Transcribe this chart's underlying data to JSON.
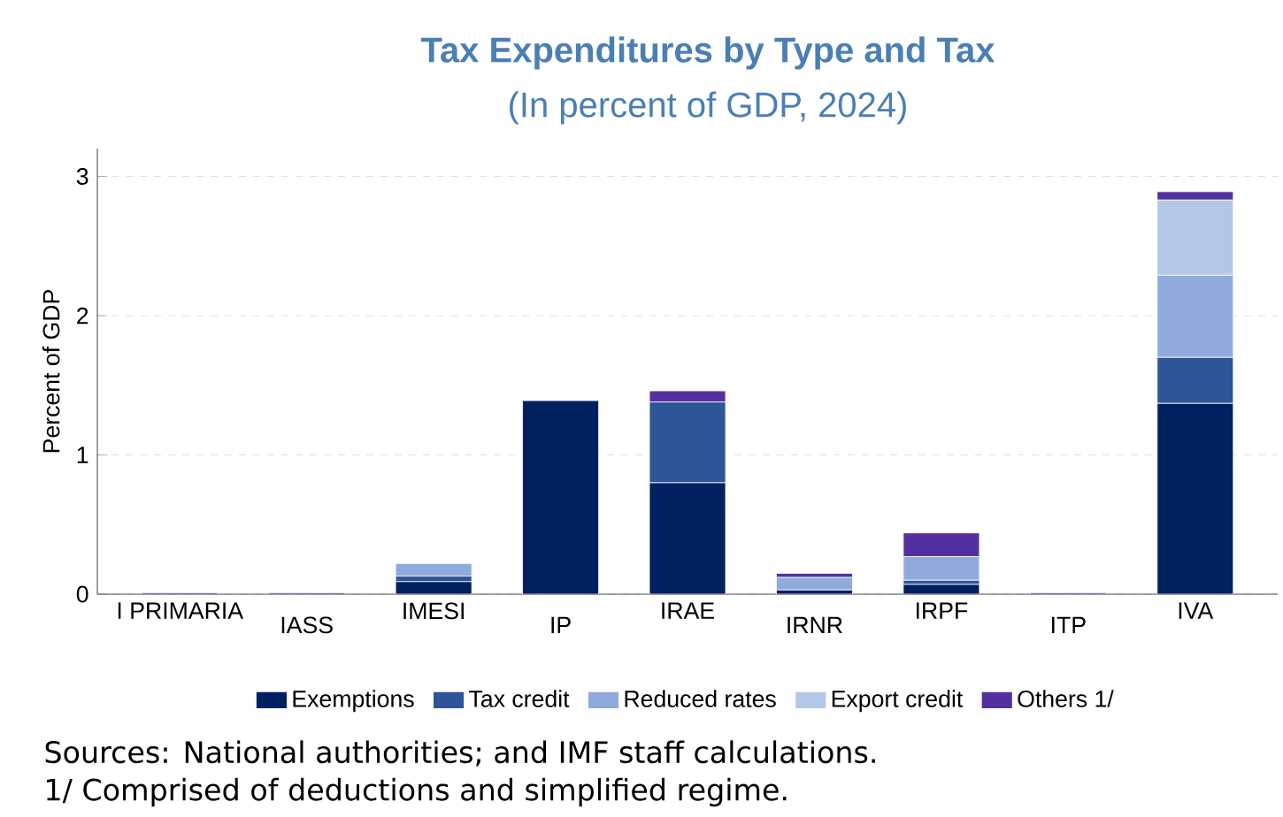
{
  "chart_data": {
    "type": "bar",
    "stacked": true,
    "title": "Tax Expenditures by Type and Tax",
    "subtitle": "(In percent of GDP, 2024)",
    "ylabel": "Percent of GDP",
    "categories": [
      "I PRIMARIA",
      "IASS",
      "IMESI",
      "IP",
      "IRAE",
      "IRNR",
      "IRPF",
      "ITP",
      "IVA"
    ],
    "series": [
      {
        "name": "Exemptions",
        "color": "#002060",
        "values": [
          0.01,
          0.01,
          0.09,
          1.39,
          0.8,
          0.03,
          0.07,
          0.01,
          1.37
        ]
      },
      {
        "name": "Tax credit",
        "color": "#2e5597",
        "values": [
          0,
          0,
          0.04,
          0,
          0.58,
          null,
          0.03,
          0,
          0.33
        ]
      },
      {
        "name": "Reduced rates",
        "color": "#8faadc",
        "values": [
          0,
          0,
          0.09,
          null,
          0,
          0.09,
          0.17,
          0,
          0.59
        ]
      },
      {
        "name": "Export credit",
        "color": "#b4c7e7",
        "values": [
          0,
          0,
          0,
          0,
          0,
          0,
          0,
          0,
          0.54
        ]
      },
      {
        "name": "Others 1/",
        "color": "#5230a0",
        "values": [
          0,
          0,
          0,
          0,
          0.08,
          0.03,
          0.17,
          0,
          0.06
        ]
      }
    ],
    "ylim": [
      0,
      3.2
    ],
    "yticks": [
      0,
      1,
      2,
      3
    ],
    "grid": "y",
    "legend": "bottom",
    "annotations": [
      "Sources: National authorities; and IMF staff calculations.",
      "1/ Comprised of deductions and simplified regime."
    ]
  }
}
